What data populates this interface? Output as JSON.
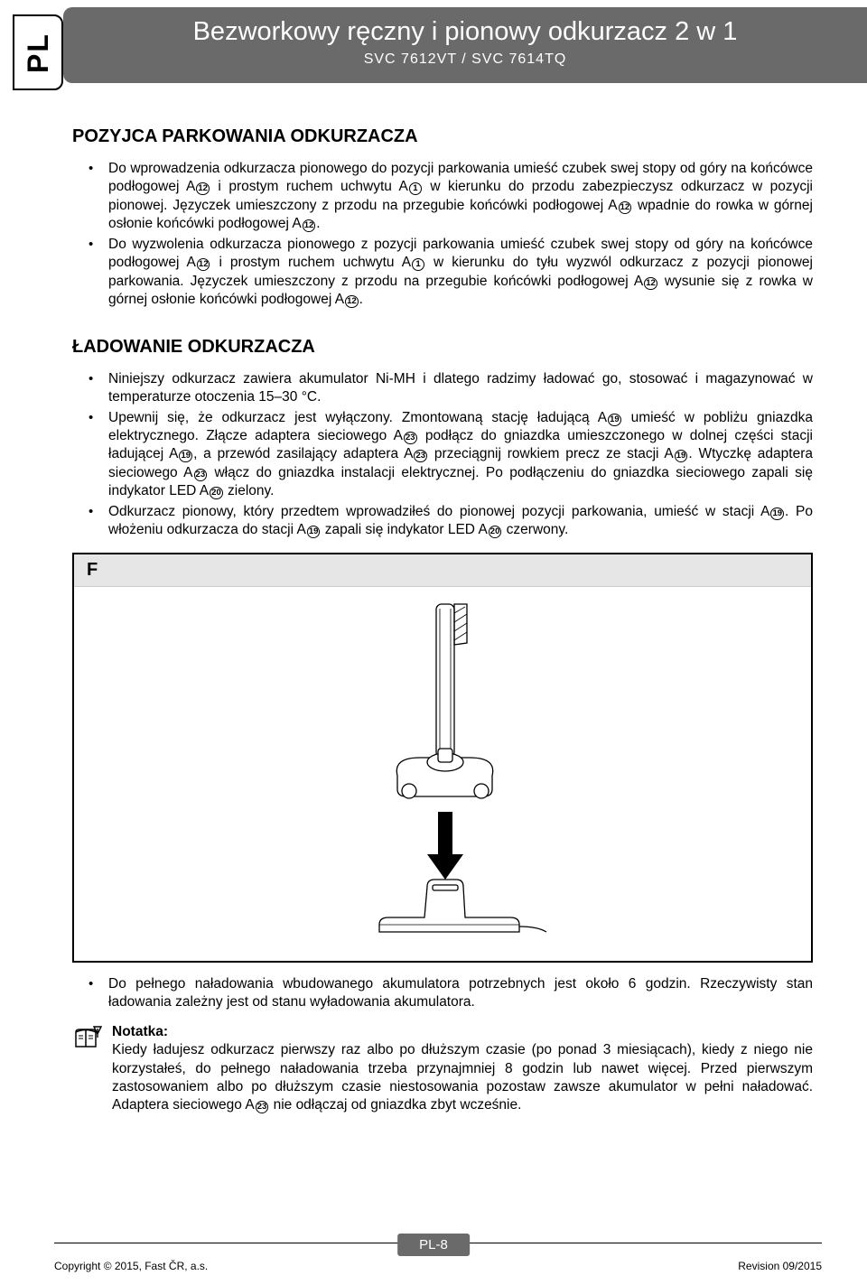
{
  "lang_tab": "PL",
  "header": {
    "title": "Bezworkowy ręczny i pionowy odkurzacz 2 w 1",
    "subtitle": "SVC 7612VT / SVC 7614TQ"
  },
  "section1": {
    "heading": "POZYJCA PARKOWANIA ODKURZACZA",
    "items": [
      "Do wprowadzenia odkurzacza pionowego do pozycji parkowania umieść czubek swej stopy od góry na końcówce podłogowej A⑫ i prostym ruchem uchwytu A① w kierunku do przodu zabezpieczysz odkurzacz w pozycji pionowej. Języczek umieszczony z przodu na przegubie końcówki podłogowej A⑫ wpadnie do rowka w górnej osłonie końcówki podłogowej A⑫.",
      "Do wyzwolenia odkurzacza pionowego z pozycji parkowania umieść czubek swej stopy od góry na końcówce podłogowej A⑫ i prostym ruchem uchwytu A① w kierunku do tyłu wyzwól odkurzacz z pozycji pionowej parkowania. Języczek umieszczony z przodu na przegubie końcówki podłogowej A⑫ wysunie się z rowka w górnej osłonie końcówki podłogowej A⑫."
    ]
  },
  "section2": {
    "heading": "ŁADOWANIE ODKURZACZA",
    "items": [
      "Niniejszy odkurzacz zawiera akumulator Ni-MH i dlatego radzimy ładować go, stosować i magazynować w temperaturze otoczenia 15–30 °C.",
      "Upewnij się, że odkurzacz jest wyłączony. Zmontowaną stację ładującą A⑲ umieść w pobliżu gniazdka elektrycznego. Złącze adaptera sieciowego A㉓ podłącz do gniazdka umieszczonego w dolnej części stacji ładującej A⑲, a przewód zasilający adaptera A㉓ przeciągnij rowkiem precz ze stacji A⑲. Wtyczkę adaptera sieciowego A㉓ włącz do gniazdka instalacji elektrycznej. Po podłączeniu do gniazdka sieciowego zapali się indykator LED  A⑳ zielony.",
      "Odkurzacz pionowy, który przedtem wprowadziłeś do pionowej pozycji parkowania, umieść w stacji A⑲. Po włożeniu odkurzacza do stacji A⑲ zapali się indykator LED  A⑳ czerwony."
    ]
  },
  "figure": {
    "label": "F"
  },
  "section3": {
    "items": [
      "Do pełnego naładowania wbudowanego akumulatora potrzebnych jest około 6 godzin. Rzeczywisty stan ładowania zależny jest od stanu wyładowania akumulatora."
    ]
  },
  "note": {
    "label": "Notatka:",
    "text": "Kiedy ładujesz odkurzacz pierwszy raz albo po dłuższym czasie (po ponad 3 miesiącach), kiedy z niego nie korzystałeś, do pełnego naładowania trzeba przynajmniej 8 godzin lub nawet więcej. Przed pierwszym zastosowaniem albo po dłuższym czasie niestosowania pozostaw zawsze akumulator w pełni naładować.  Adaptera sieciowego A㉓ nie odłączaj od gniazdka zbyt wcześnie."
  },
  "footer": {
    "page": "PL-8",
    "copyright": "Copyright © 2015, Fast ČR, a.s.",
    "revision": "Revision 09/2015"
  },
  "colors": {
    "header_bg": "#6a6a6a",
    "header_fg": "#ffffff",
    "figure_head_bg": "#e6e6e6",
    "text": "#000000"
  }
}
